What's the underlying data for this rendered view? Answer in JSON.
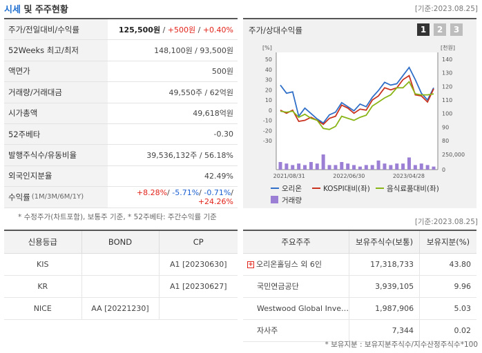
{
  "header": {
    "title_blue": "시세",
    "title_rest": " 및 주주현황",
    "date": "[기준:2023.08.25]"
  },
  "quote": {
    "rows": [
      {
        "label": "주가/전일대비/수익률",
        "price": "125,500원",
        "change": "+500원",
        "rate": "+0.40%"
      },
      {
        "label": "52Weeks 최고/최저",
        "value": "148,100원 / 93,500원"
      },
      {
        "label": "액면가",
        "value": "500원"
      },
      {
        "label": "거래량/거래대금",
        "value": "49,550주 / 62억원"
      },
      {
        "label": "시가총액",
        "value": "49,618억원"
      },
      {
        "label": "52주베타",
        "value": "-0.30"
      },
      {
        "label": "발행주식수/유동비율",
        "value": "39,536,132주 / 56.18%"
      },
      {
        "label": "외국인지분율",
        "value": "42.49%"
      }
    ],
    "returns": {
      "label": "수익률",
      "sub": "(1M/3M/6M/1Y)",
      "m1": "+8.28%",
      "m3": "-5.71%",
      "m6": "-0.71%",
      "y1": "+24.26%"
    },
    "note": "* 수정주가(차트포함), 보통주 기준, * 52주베타: 주간수익률 기준"
  },
  "chart_panel": {
    "title": "주가/상대수익률",
    "pages": [
      "1",
      "2",
      "3"
    ]
  },
  "chart_data": {
    "type": "line",
    "y_left_unit": "[%]",
    "y_right_unit": "[천원]",
    "y_left_ticks": [
      "50",
      "40",
      "30",
      "20",
      "10",
      "0",
      "-10",
      "-20",
      "-30"
    ],
    "y_right_ticks": [
      "140",
      "130",
      "120",
      "110",
      "100",
      "90",
      "80"
    ],
    "volume_tick": "250,000",
    "volume_zero": "0",
    "x_ticks": [
      "2021/08/31",
      "2022/06/30",
      "2023/04/28"
    ],
    "ylim_left": [
      -30,
      50
    ],
    "ylim_right": [
      80,
      140
    ],
    "series": [
      {
        "name": "오리온",
        "color": "#2f6fc8",
        "axis": "right",
        "values": [
          121,
          115,
          116,
          98,
          104,
          100,
          96,
          93,
          99,
          101,
          108,
          105,
          102,
          107,
          105,
          112,
          117,
          123,
          121,
          122,
          128,
          134,
          125,
          115,
          110,
          119
        ]
      },
      {
        "name": "KOSPI대비(좌)",
        "color": "#c8321e",
        "axis": "left",
        "values": [
          0,
          -3,
          0,
          -11,
          -10,
          -7,
          -10,
          -14,
          -8,
          -6,
          5,
          2,
          -3,
          1,
          0,
          10,
          14,
          22,
          20,
          22,
          30,
          34,
          15,
          14,
          8,
          21
        ]
      },
      {
        "name": "음식료품대비(좌)",
        "color": "#8ab517",
        "axis": "left",
        "values": [
          -1,
          -2,
          -1,
          -7,
          -4,
          -8,
          -10,
          -18,
          -19,
          -16,
          -6,
          -8,
          -10,
          -7,
          -5,
          4,
          8,
          12,
          15,
          22,
          22,
          28,
          16,
          15,
          15,
          16
        ]
      }
    ],
    "volume": {
      "name": "거래량",
      "color": "#9b7fd4",
      "values": [
        0.5,
        0.4,
        0.3,
        0.4,
        0.3,
        0.5,
        0.4,
        1.0,
        0.3,
        0.3,
        0.5,
        0.4,
        0.3,
        0.2,
        0.3,
        0.3,
        0.6,
        0.4,
        0.3,
        0.4,
        0.4,
        0.8,
        0.3,
        0.4,
        0.3,
        0.2
      ]
    }
  },
  "date2": "[기준:2023.08.25]",
  "credit": {
    "headers": [
      "신용등급",
      "BOND",
      "CP"
    ],
    "rows": [
      [
        "KIS",
        "",
        "A1 [20230630]"
      ],
      [
        "KR",
        "",
        "A1 [20230627]"
      ],
      [
        "NICE",
        "AA [20221230]",
        ""
      ]
    ]
  },
  "holders": {
    "headers": [
      "주요주주",
      "보유주식수(보통)",
      "보유지분(%)"
    ],
    "rows": [
      {
        "name": "오리온홀딩스 외 6인",
        "shares": "17,318,733",
        "pct": "43.80",
        "expand": true
      },
      {
        "name": "국민연금공단",
        "shares": "3,939,105",
        "pct": "9.96",
        "expand": false
      },
      {
        "name": "Westwood Global Inve…",
        "shares": "1,987,906",
        "pct": "5.03",
        "expand": false
      },
      {
        "name": "자사주",
        "shares": "7,344",
        "pct": "0.02",
        "expand": false
      }
    ],
    "note": "* 보유지분 : 보유지분주식수/지수산정주식수*100"
  }
}
